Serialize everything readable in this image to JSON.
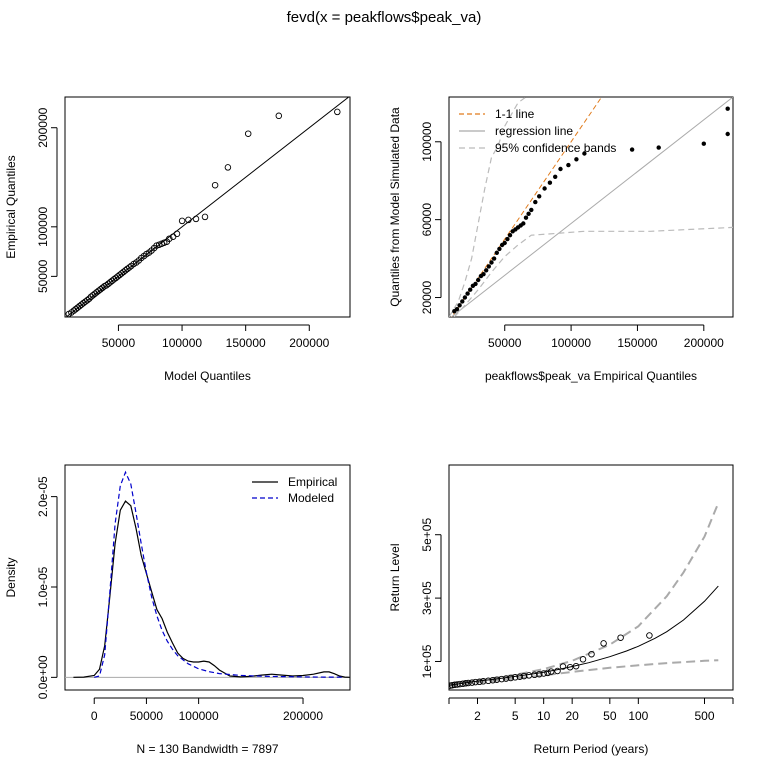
{
  "title": "fevd(x = peakflows$peak_va)",
  "chart_data": [
    {
      "type": "scatter",
      "panel": "qq-model-vs-empirical",
      "xlabel": "Model Quantiles",
      "ylabel": "Empirical Quantiles",
      "xlim": [
        8000,
        232000
      ],
      "ylim": [
        9000,
        231000
      ],
      "xticks": [
        50000,
        100000,
        150000,
        200000
      ],
      "xtick_labels": [
        "50000",
        "100000",
        "150000",
        "200000"
      ],
      "yticks": [
        50000,
        100000,
        200000
      ],
      "ytick_labels": [
        "50000",
        "100000",
        "200000"
      ],
      "reference_line": "1-1",
      "points": {
        "x": [
          11000,
          13000,
          15000,
          16500,
          18000,
          19500,
          21000,
          22500,
          24000,
          25500,
          27000,
          28500,
          30000,
          31500,
          33000,
          34500,
          36000,
          37500,
          39000,
          40500,
          42000,
          43500,
          45000,
          46500,
          48000,
          49500,
          51000,
          52500,
          54000,
          55500,
          57000,
          58500,
          60000,
          62000,
          64000,
          66000,
          68000,
          70000,
          72000,
          74000,
          76000,
          78000,
          80000,
          82000,
          84000,
          86000,
          88000,
          90000,
          93000,
          96000,
          100000,
          105000,
          111000,
          118000,
          126000,
          136000,
          152000,
          176000,
          222000
        ],
        "y": [
          12000,
          13500,
          15500,
          17000,
          18500,
          20000,
          21500,
          23000,
          24500,
          26000,
          27500,
          29500,
          31000,
          32500,
          34000,
          35500,
          37000,
          38500,
          40000,
          41000,
          42500,
          44000,
          45500,
          47000,
          48500,
          50000,
          51500,
          53000,
          54500,
          56000,
          57500,
          59000,
          60500,
          62500,
          64000,
          66000,
          68500,
          70500,
          72500,
          74000,
          76000,
          78500,
          81000,
          82000,
          83000,
          84000,
          85000,
          88000,
          90000,
          93000,
          106000,
          107000,
          108000,
          110000,
          142000,
          160000,
          194000,
          212000,
          216000
        ]
      }
    },
    {
      "type": "scatter",
      "panel": "qq-simulated-vs-empirical",
      "xlabel": "peakflows$peak_va Empirical Quantiles",
      "ylabel": "Quantiles from Model Simulated Data",
      "xlim": [
        8000,
        222000
      ],
      "ylim": [
        10000,
        123000
      ],
      "xticks": [
        50000,
        100000,
        150000,
        200000
      ],
      "xtick_labels": [
        "50000",
        "100000",
        "150000",
        "200000"
      ],
      "yticks": [
        20000,
        60000,
        100000
      ],
      "ytick_labels": [
        "20000",
        "60000",
        "100000"
      ],
      "legend": [
        "1-1 line",
        "regression line",
        "95% confidence bands"
      ],
      "legend_colors": [
        "#e07b1c",
        "#aaaaaa",
        "#bbbbbb"
      ],
      "legend_position": "top-left",
      "points": {
        "x": [
          12000,
          14000,
          16000,
          18000,
          20000,
          22000,
          24000,
          26000,
          28000,
          30000,
          32000,
          34000,
          36000,
          38000,
          40000,
          42000,
          44000,
          46000,
          48000,
          50000,
          52000,
          54000,
          56000,
          58000,
          60000,
          62000,
          64000,
          66000,
          68000,
          70000,
          73000,
          76000,
          80000,
          84000,
          88000,
          92000,
          98000,
          104000,
          110000,
          146000,
          166000,
          200000,
          218000,
          218000
        ],
        "y": [
          13000,
          14000,
          16000,
          18000,
          20000,
          22000,
          24000,
          26000,
          27000,
          29000,
          31000,
          32000,
          34000,
          36000,
          38000,
          40000,
          43000,
          45000,
          47000,
          48000,
          50000,
          52000,
          54000,
          55000,
          56000,
          57000,
          58000,
          61000,
          63000,
          65000,
          69000,
          72000,
          76000,
          79000,
          82000,
          86000,
          88000,
          91000,
          94000,
          96000,
          97000,
          99000,
          104000,
          117000
        ]
      },
      "one_to_one": [
        [
          8000,
          8000
        ],
        [
          125000,
          125000
        ]
      ],
      "regression_line": [
        [
          8000,
          9000
        ],
        [
          222000,
          123000
        ]
      ],
      "upper_band": {
        "x": [
          8000,
          15000,
          20000,
          25000,
          30000,
          35000,
          40000,
          45000,
          50000,
          60000,
          70000
        ],
        "y": [
          10000,
          18000,
          28000,
          40000,
          58000,
          76000,
          92000,
          98000,
          108000,
          120000,
          125000
        ]
      },
      "lower_band": {
        "x": [
          12000,
          20000,
          30000,
          40000,
          50000,
          60000,
          70000,
          90000,
          110000,
          130000,
          160000,
          190000,
          222000
        ],
        "y": [
          10000,
          16000,
          24000,
          33000,
          41000,
          47000,
          52000,
          53000,
          54000,
          54000,
          54000,
          55000,
          56000
        ]
      }
    },
    {
      "type": "line",
      "panel": "density",
      "xlabel": "N = 130   Bandwidth = 7897",
      "ylabel": "Density",
      "xlim": [
        -28000,
        245000
      ],
      "ylim": [
        -1.4e-06,
        2.35e-05
      ],
      "xticks": [
        0,
        50000,
        100000,
        200000
      ],
      "xtick_labels": [
        "0",
        "50000",
        "100000",
        "200000"
      ],
      "yticks": [
        0,
        1e-05,
        2e-05
      ],
      "ytick_labels": [
        "0.0e+00",
        "1.0e-05",
        "2.0e-05"
      ],
      "legend": [
        "Empirical",
        "Modeled"
      ],
      "legend_position": "top-right",
      "series": [
        {
          "name": "Empirical",
          "color": "#000000",
          "x": [
            -20000,
            -10000,
            0,
            5000,
            10000,
            15000,
            20000,
            25000,
            30000,
            35000,
            40000,
            45000,
            50000,
            55000,
            60000,
            65000,
            70000,
            75000,
            80000,
            85000,
            90000,
            95000,
            100000,
            105000,
            110000,
            115000,
            120000,
            130000,
            140000,
            150000,
            160000,
            170000,
            180000,
            190000,
            200000,
            210000,
            220000,
            225000,
            230000,
            235000,
            240000,
            245000
          ],
          "y": [
            0,
            3e-08,
            2e-07,
            9e-07,
            3.5e-06,
            9e-06,
            1.48e-05,
            1.85e-05,
            1.95e-05,
            1.9e-05,
            1.65e-05,
            1.35e-05,
            1.15e-05,
            9.5e-06,
            7.5e-06,
            6.5e-06,
            5e-06,
            3.8e-06,
            2.7e-06,
            2.1e-06,
            1.8e-06,
            1.7e-06,
            1.7e-06,
            1.8e-06,
            1.7e-06,
            1.3e-06,
            8e-07,
            1.5e-07,
            5e-08,
            1e-07,
            2.5e-07,
            3.5e-07,
            2.5e-07,
            1.5e-07,
            2e-07,
            3.5e-07,
            6e-07,
            6e-07,
            4e-07,
            1.5e-07,
            3e-08,
            0
          ]
        },
        {
          "name": "Modeled",
          "color": "#0000cc",
          "x": [
            0,
            5000,
            10000,
            15000,
            20000,
            25000,
            30000,
            35000,
            40000,
            45000,
            50000,
            55000,
            60000,
            65000,
            70000,
            75000,
            80000,
            90000,
            100000,
            110000,
            120000,
            140000,
            160000,
            180000,
            200000,
            220000,
            240000
          ],
          "y": [
            0,
            1.5e-07,
            2.5e-06,
            9.5e-06,
            1.7e-05,
            2.12e-05,
            2.27e-05,
            2.14e-05,
            1.82e-05,
            1.48e-05,
            1.16e-05,
            8.9e-06,
            6.8e-06,
            5.2e-06,
            4e-06,
            3.1e-06,
            2.4e-06,
            1.5e-06,
            9.5e-07,
            6.2e-07,
            4.2e-07,
            2.2e-07,
            1.3e-07,
            8e-08,
            5e-08,
            3e-08,
            2e-08
          ]
        }
      ]
    },
    {
      "type": "scatter",
      "panel": "return-level",
      "xlabel": "Return Period (years)",
      "ylabel": "Return Level",
      "x_scale": "log",
      "xlim": [
        1.0,
        1000
      ],
      "ylim": [
        10000,
        720000
      ],
      "xticks": [
        2,
        5,
        10,
        20,
        50,
        100,
        500
      ],
      "xtick_labels": [
        "2",
        "5",
        "10",
        "20",
        "50",
        "100",
        "500"
      ],
      "xticks_minor": [
        1,
        1000
      ],
      "yticks": [
        100000,
        300000,
        500000
      ],
      "ytick_labels": [
        "1e+05",
        "3e+05",
        "5e+05"
      ],
      "return_level": {
        "x": [
          1.01,
          1.1,
          1.3,
          1.6,
          2,
          3,
          5,
          7,
          10,
          15,
          20,
          30,
          50,
          75,
          100,
          150,
          200,
          300,
          500,
          700
        ],
        "y": [
          25000,
          27000,
          30000,
          34000,
          38000,
          44000,
          53000,
          59000,
          66000,
          76000,
          84000,
          96000,
          115000,
          133000,
          148000,
          173000,
          194000,
          231000,
          290000,
          338000
        ]
      },
      "upper_ci": {
        "x": [
          1.01,
          1.3,
          2,
          3,
          5,
          10,
          20,
          50,
          100,
          200,
          300,
          500,
          700
        ],
        "y": [
          27000,
          33000,
          41000,
          48000,
          58000,
          76000,
          102000,
          153000,
          211000,
          306000,
          381000,
          494000,
          600000
        ]
      },
      "lower_ci": {
        "x": [
          1.01,
          1.3,
          2,
          3,
          5,
          10,
          20,
          50,
          100,
          200,
          300,
          500,
          700
        ],
        "y": [
          23000,
          27000,
          34000,
          39000,
          46000,
          56000,
          67000,
          80000,
          88000,
          95000,
          98000,
          102000,
          104000
        ]
      },
      "points": {
        "x": [
          1.03,
          1.08,
          1.15,
          1.22,
          1.3,
          1.4,
          1.5,
          1.6,
          1.75,
          1.9,
          2.1,
          2.3,
          2.6,
          2.9,
          3.2,
          3.6,
          4.0,
          4.5,
          5.0,
          5.6,
          6.2,
          7.0,
          8.0,
          9.0,
          10,
          11,
          12,
          14,
          16,
          19,
          22,
          26,
          32,
          43,
          65,
          131
        ],
        "y": [
          24000,
          25000,
          26500,
          27500,
          28500,
          29500,
          31000,
          32000,
          33500,
          35000,
          36000,
          37500,
          39000,
          41000,
          42500,
          44500,
          46000,
          48000,
          50000,
          52000,
          54000,
          56000,
          58000,
          60000,
          62000,
          64000,
          68000,
          70000,
          84000,
          82000,
          85000,
          107000,
          123000,
          157000,
          175000,
          182000
        ]
      }
    }
  ]
}
